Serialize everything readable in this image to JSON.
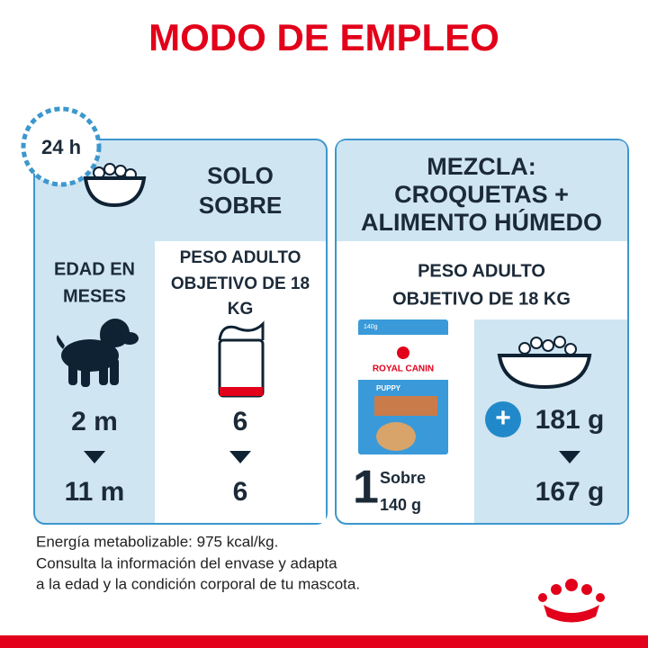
{
  "title": "MODO DE EMPLEO",
  "clock_label": "24 h",
  "left_panel": {
    "heading": [
      "SOLO",
      "SOBRE"
    ],
    "age_label": [
      "EDAD EN",
      "MESES"
    ],
    "weight_label": [
      "PESO ADULTO",
      "OBJETIVO DE 18",
      "KG"
    ],
    "rows": [
      {
        "age": "2 m",
        "count": "6"
      },
      {
        "age": "11 m",
        "count": "6"
      }
    ]
  },
  "right_panel": {
    "heading": [
      "MEZCLA:",
      "CROQUETAS +",
      "ALIMENTO HÚMEDO"
    ],
    "weight_label": [
      "PESO ADULTO",
      "OBJETIVO DE 18 KG"
    ],
    "pouch": {
      "size": "140g",
      "brand": "ROYAL CANIN",
      "variant": "PUPPY",
      "number": "1",
      "unit": [
        "Sobre",
        "140 g"
      ]
    },
    "plus": "+",
    "rows": [
      "181 g",
      "167 g"
    ]
  },
  "notes": [
    "Energía metabolizable: 975 kcal/kg.",
    "Consulta la información del envase y adapta",
    "a la edad y la condición corporal de tu mascota."
  ]
}
